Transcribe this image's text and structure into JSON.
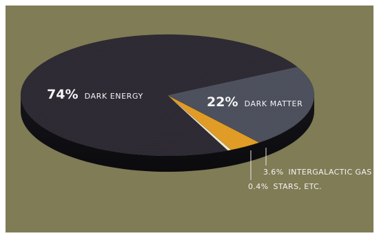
{
  "chart_data": {
    "type": "pie",
    "title": "",
    "slices": [
      {
        "label_value": "74%",
        "label_name": "DARK ENERGY",
        "value": 74,
        "color": "#2a2730"
      },
      {
        "label_value": "22%",
        "label_name": "DARK MATTER",
        "value": 22,
        "color": "#4a4d5a"
      },
      {
        "label_value": "3.6%",
        "label_name": "INTERGALACTIC GAS",
        "value": 3.6,
        "color": "#e09a22"
      },
      {
        "label_value": "0.4%",
        "label_name": "STARS, ETC.",
        "value": 0.4,
        "color": "#ece7d0"
      }
    ],
    "background_color": "#7f7c56",
    "style": "3d-tilted"
  }
}
